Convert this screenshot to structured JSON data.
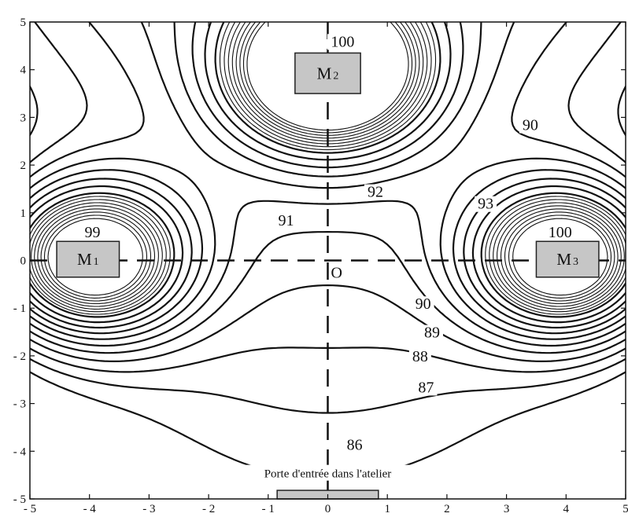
{
  "chart_data": {
    "type": "contour",
    "title": "",
    "xlabel": "",
    "ylabel": "",
    "xlim": [
      -5,
      5
    ],
    "ylim": [
      -5,
      5
    ],
    "x_ticks": [
      "- 5",
      "- 4",
      "- 3",
      "- 2",
      "- 1",
      "0",
      "1",
      "2",
      "3",
      "4",
      "5"
    ],
    "y_ticks": [
      "5",
      "4",
      "3",
      "2",
      "1",
      "0",
      "- 1",
      "- 2",
      "- 3",
      "- 4",
      "- 5"
    ],
    "grid": false,
    "origin_label": "O",
    "machines": [
      {
        "label": "M",
        "sub": "1",
        "x": [
          -4.55,
          -3.5
        ],
        "y": [
          -0.35,
          0.4
        ]
      },
      {
        "label": "M",
        "sub": "2",
        "x": [
          -0.55,
          0.55
        ],
        "y": [
          3.5,
          4.35
        ]
      },
      {
        "label": "M",
        "sub": "3",
        "x": [
          3.5,
          4.55
        ],
        "y": [
          -0.35,
          0.4
        ]
      }
    ],
    "door": {
      "label": "Porte d'entrée dans l'atelier",
      "x": [
        -0.85,
        0.85
      ],
      "y": [
        -5,
        -4.82
      ]
    },
    "contour_labels": [
      {
        "text": "100",
        "x": 0.25,
        "y": 4.5
      },
      {
        "text": "90",
        "x": 3.4,
        "y": 2.75
      },
      {
        "text": "92",
        "x": 0.8,
        "y": 1.35
      },
      {
        "text": "93",
        "x": 2.65,
        "y": 1.1
      },
      {
        "text": "91",
        "x": -0.7,
        "y": 0.75
      },
      {
        "text": "99",
        "x": -3.95,
        "y": 0.5
      },
      {
        "text": "100",
        "x": 3.9,
        "y": 0.5
      },
      {
        "text": "90",
        "x": 1.6,
        "y": -1.0
      },
      {
        "text": "89",
        "x": 1.75,
        "y": -1.6
      },
      {
        "text": "88",
        "x": 1.55,
        "y": -2.1
      },
      {
        "text": "87",
        "x": 1.65,
        "y": -2.75
      },
      {
        "text": "86",
        "x": 0.45,
        "y": -3.95
      }
    ]
  }
}
